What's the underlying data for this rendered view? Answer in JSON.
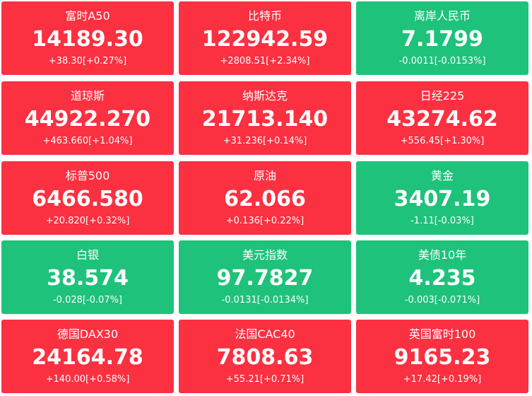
{
  "tiles": [
    {
      "name": "富时A50",
      "price": "14189.30",
      "change": "+38.30[+0.27%]",
      "color": "#fb3041"
    },
    {
      "name": "比特币",
      "price": "122942.59",
      "change": "+2808.51[+2.34%]",
      "color": "#fb3041"
    },
    {
      "name": "离岸人民币",
      "price": "7.1799",
      "change": "-0.0011[-0.0153%]",
      "color": "#1ec27b"
    },
    {
      "name": "道琼斯",
      "price": "44922.270",
      "change": "+463.660[+1.04%]",
      "color": "#fb3041"
    },
    {
      "name": "纳斯达克",
      "price": "21713.140",
      "change": "+31.236[+0.14%]",
      "color": "#fb3041"
    },
    {
      "name": "日经225",
      "price": "43274.62",
      "change": "+556.45[+1.30%]",
      "color": "#fb3041"
    },
    {
      "name": "标普500",
      "price": "6466.580",
      "change": "+20.820[+0.32%]",
      "color": "#fb3041"
    },
    {
      "name": "原油",
      "price": "62.066",
      "change": "+0.136[+0.22%]",
      "color": "#fb3041"
    },
    {
      "name": "黄金",
      "price": "3407.19",
      "change": "-1.11[-0.03%]",
      "color": "#1ec27b"
    },
    {
      "name": "白银",
      "price": "38.574",
      "change": "-0.028[-0.07%]",
      "color": "#1ec27b"
    },
    {
      "name": "美元指数",
      "price": "97.7827",
      "change": "-0.0131[-0.0134%]",
      "color": "#1ec27b"
    },
    {
      "name": "美债10年",
      "price": "4.235",
      "change": "-0.003[-0.071%]",
      "color": "#1ec27b"
    },
    {
      "name": "德国DAX30",
      "price": "24164.78",
      "change": "+140.00[+0.58%]",
      "color": "#fb3041"
    },
    {
      "name": "法国CAC40",
      "price": "7808.63",
      "change": "+55.21[+0.71%]",
      "color": "#fb3041"
    },
    {
      "name": "英国富时100",
      "price": "9165.23",
      "change": "+17.42[+0.19%]",
      "color": "#fb3041"
    }
  ]
}
